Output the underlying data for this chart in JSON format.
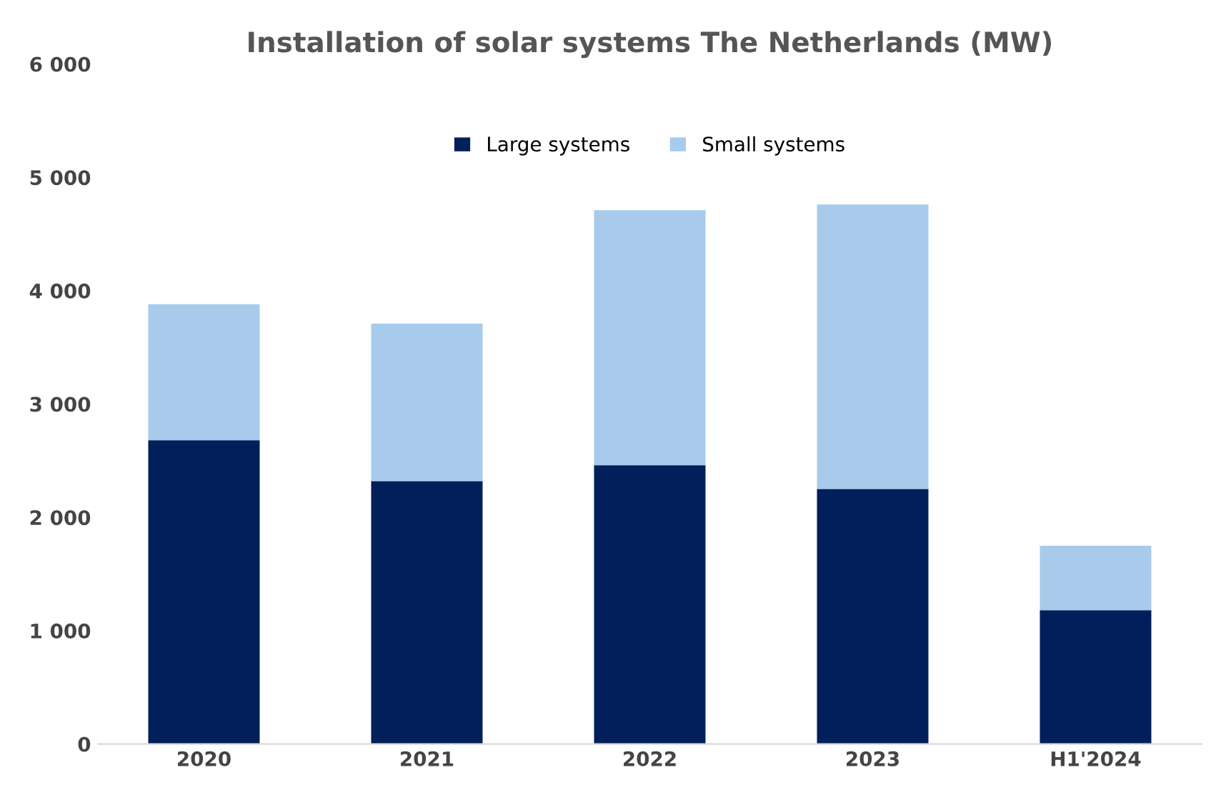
{
  "chart_data": {
    "type": "bar",
    "stacked": true,
    "title": "Installation of solar systems The Netherlands (MW)",
    "categories": [
      "2020",
      "2021",
      "2022",
      "2023",
      "H1'2024"
    ],
    "series": [
      {
        "name": "Large systems",
        "color": "#001f5b",
        "values": [
          2680,
          2320,
          2460,
          2250,
          1180
        ]
      },
      {
        "name": "Small systems",
        "color": "#a8cbeb",
        "values": [
          1200,
          1390,
          2250,
          2510,
          570
        ]
      }
    ],
    "ylim": [
      0,
      6000
    ],
    "yticks": [
      {
        "value": 0,
        "label": "0"
      },
      {
        "value": 1000,
        "label": "1 000"
      },
      {
        "value": 2000,
        "label": "2 000"
      },
      {
        "value": 3000,
        "label": "3 000"
      },
      {
        "value": 4000,
        "label": "4 000"
      },
      {
        "value": 5000,
        "label": "5 000"
      },
      {
        "value": 6000,
        "label": "6 000"
      }
    ],
    "grid": false,
    "legend": "top"
  }
}
